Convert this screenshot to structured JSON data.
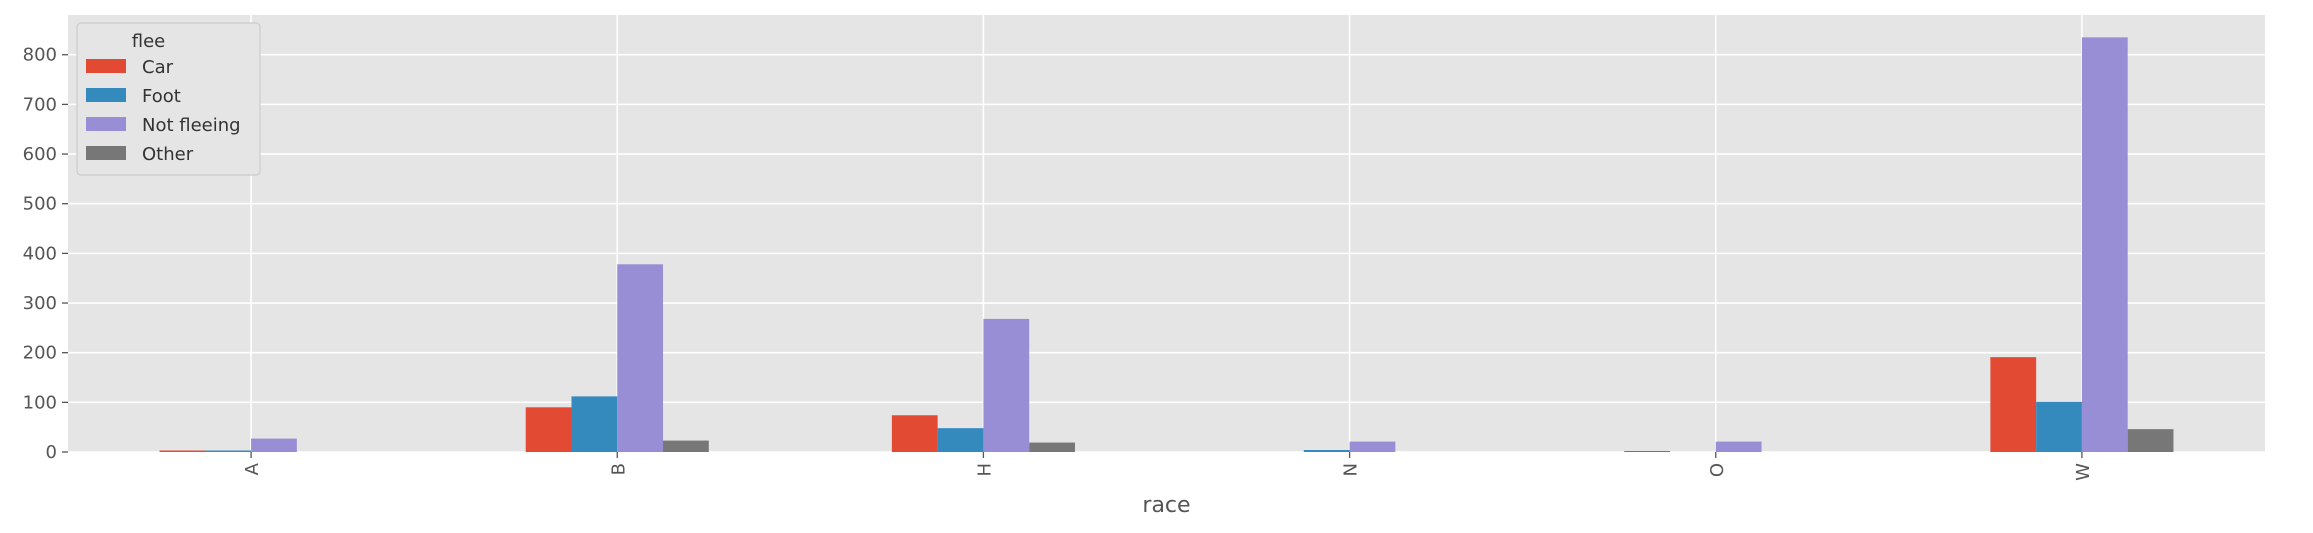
{
  "chart_data": {
    "type": "bar",
    "title": "",
    "xlabel": "race",
    "ylabel": "",
    "categories": [
      "A",
      "B",
      "H",
      "N",
      "O",
      "W"
    ],
    "series": [
      {
        "name": "Car",
        "color": "#E24A33",
        "values": [
          3,
          90,
          74,
          0,
          2,
          191
        ]
      },
      {
        "name": "Foot",
        "color": "#348ABD",
        "values": [
          3,
          112,
          48,
          4,
          0,
          101
        ]
      },
      {
        "name": "Not fleeing",
        "color": "#988ED5",
        "values": [
          27,
          378,
          268,
          21,
          21,
          835
        ]
      },
      {
        "name": "Other",
        "color": "#777777",
        "values": [
          0,
          23,
          19,
          0,
          0,
          46
        ]
      }
    ],
    "ylim": [
      0,
      880
    ],
    "yticks": [
      0,
      100,
      200,
      300,
      400,
      500,
      600,
      700,
      800
    ],
    "grid": true,
    "legend": {
      "title": "flee",
      "position": "top-left"
    },
    "style": {
      "background": "#E5E5E5",
      "grid_color": "#FFFFFF",
      "tick_color": "#555555"
    },
    "xtick_rotation": 90
  }
}
